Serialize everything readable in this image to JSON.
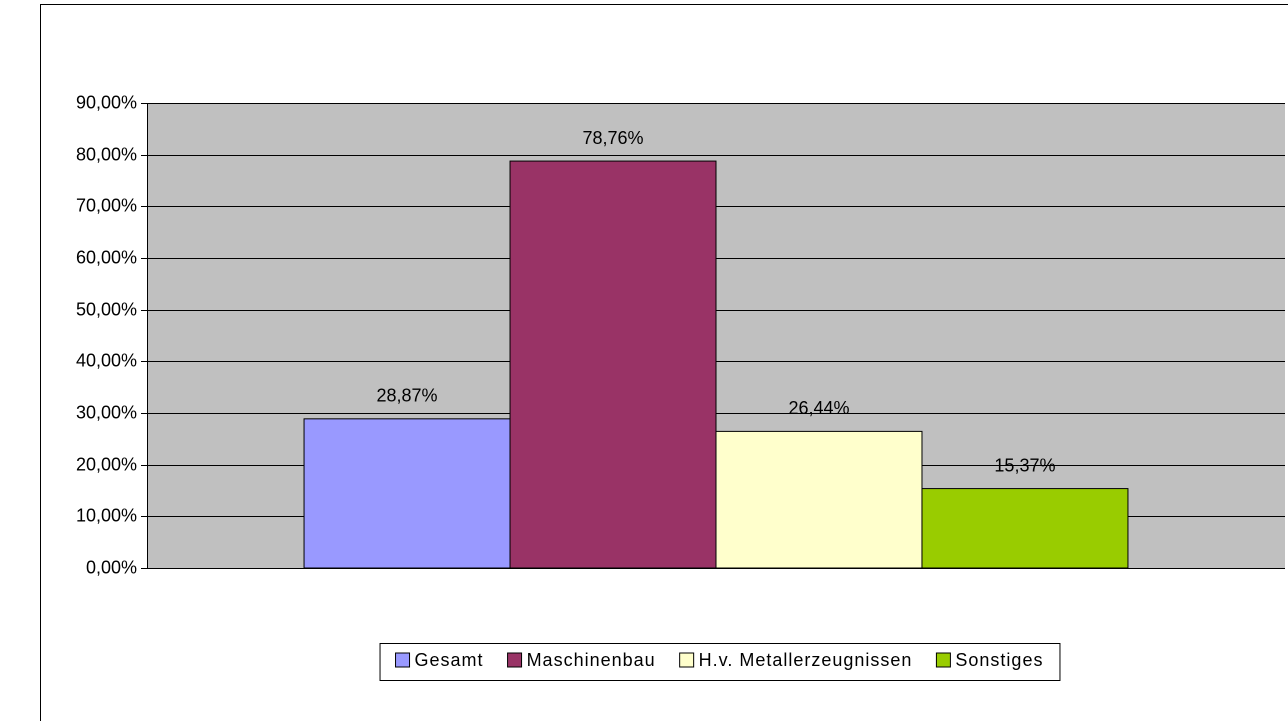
{
  "chart_data": {
    "type": "bar",
    "categories": [
      null
    ],
    "series": [
      {
        "name": "Gesamt",
        "color": "#9999ff",
        "values": [
          28.87
        ],
        "value_labels": [
          "28,87%"
        ]
      },
      {
        "name": "Maschinenbau",
        "color": "#993366",
        "values": [
          78.76
        ],
        "value_labels": [
          "78,76%"
        ]
      },
      {
        "name": "H.v. Metallerzeugnissen",
        "color": "#ffffcc",
        "values": [
          26.44
        ],
        "value_labels": [
          "26,44%"
        ]
      },
      {
        "name": "Sonstiges",
        "color": "#99cc00",
        "values": [
          15.37
        ],
        "value_labels": [
          "15,37%"
        ]
      }
    ],
    "ylim": [
      0,
      90
    ],
    "yticks": [
      {
        "value": 0,
        "label": "0,00%"
      },
      {
        "value": 10,
        "label": "10,00%"
      },
      {
        "value": 20,
        "label": "20,00%"
      },
      {
        "value": 30,
        "label": "30,00%"
      },
      {
        "value": 40,
        "label": "40,00%"
      },
      {
        "value": 50,
        "label": "50,00%"
      },
      {
        "value": 60,
        "label": "60,00%"
      },
      {
        "value": 70,
        "label": "70,00%"
      },
      {
        "value": 80,
        "label": "80,00%"
      },
      {
        "value": 90,
        "label": "90,00%"
      }
    ],
    "grid": true,
    "plot_background": "#c0c0c0",
    "legend": "bottom"
  }
}
